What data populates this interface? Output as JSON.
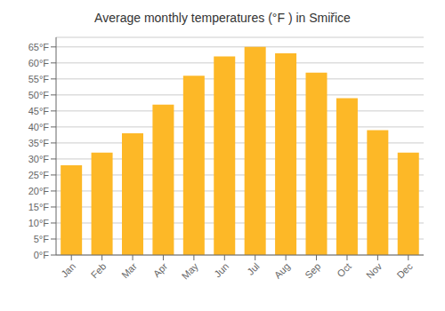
{
  "chart_data": {
    "type": "bar",
    "title": "Average monthly temperatures (°F ) in Smiřice",
    "categories": [
      "Jan",
      "Feb",
      "Mar",
      "Apr",
      "May",
      "Jun",
      "Jul",
      "Aug",
      "Sep",
      "Oct",
      "Nov",
      "Dec"
    ],
    "values": [
      28,
      32,
      38,
      47,
      56,
      62,
      65,
      63,
      57,
      49,
      39,
      32
    ],
    "color": "#FDB827",
    "ylim": [
      0,
      68
    ],
    "yticks": [
      {
        "value": 0,
        "label": "0°F"
      },
      {
        "value": 5,
        "label": "5°F"
      },
      {
        "value": 10,
        "label": "10°F"
      },
      {
        "value": 15,
        "label": "15°F"
      },
      {
        "value": 20,
        "label": "20°F"
      },
      {
        "value": 25,
        "label": "25°F"
      },
      {
        "value": 30,
        "label": "30°F"
      },
      {
        "value": 35,
        "label": "35°F"
      },
      {
        "value": 40,
        "label": "40°F"
      },
      {
        "value": 45,
        "label": "45°F"
      },
      {
        "value": 50,
        "label": "50°F"
      },
      {
        "value": 55,
        "label": "55°F"
      },
      {
        "value": 60,
        "label": "60°F"
      },
      {
        "value": 65,
        "label": "65°F"
      }
    ],
    "grid": true
  }
}
